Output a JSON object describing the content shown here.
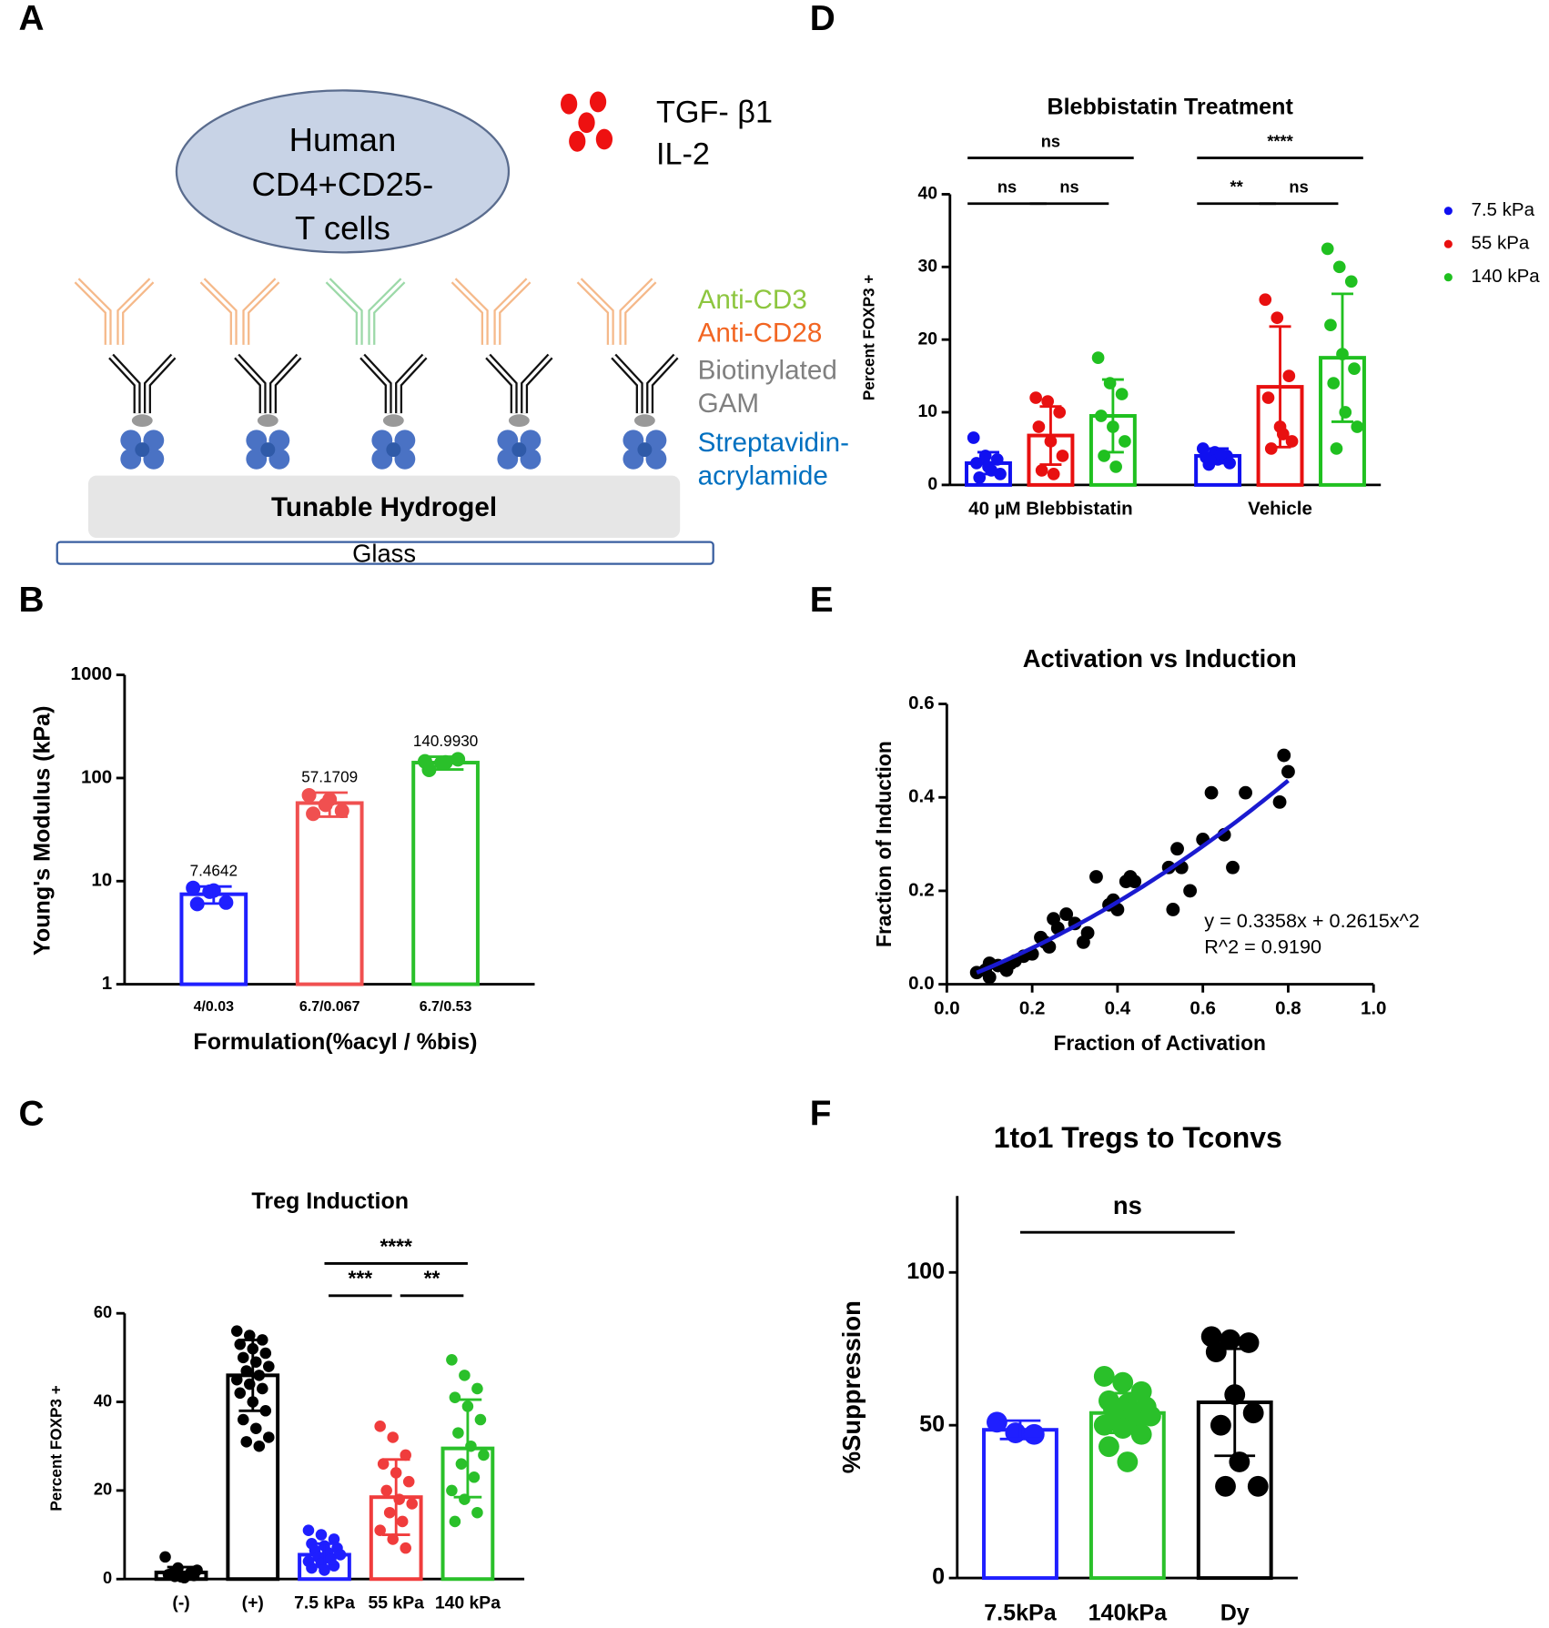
{
  "panels": [
    "A",
    "B",
    "C",
    "D",
    "E",
    "F"
  ],
  "diagram": {
    "cell_label": [
      "Human",
      "CD4+CD25-",
      "T cells"
    ],
    "cytokines": [
      "TGF- β1",
      "IL-2"
    ],
    "legend": [
      {
        "text": "Anti-CD3",
        "color": "#8dc63f"
      },
      {
        "text": "Anti-CD28",
        "color": "#f26522"
      },
      {
        "text": "Biotinylated",
        "color": "#808080"
      },
      {
        "text": "GAM",
        "color": "#808080"
      },
      {
        "text": "Streptavidin-",
        "color": "#0070c0"
      },
      {
        "text": "acrylamide",
        "color": "#0070c0"
      }
    ],
    "hydrogel": "Tunable Hydrogel",
    "glass": "Glass"
  },
  "chart_data": [
    {
      "type": "bar",
      "log": true,
      "ylabel": "Young's Modulus (kPa)",
      "xlabel": "Formulation(%acyl / %bis)",
      "categories": [
        "4/0.03",
        "6.7/0.067",
        "6.7/0.53"
      ],
      "values": [
        7.4642,
        57.1709,
        140.993
      ],
      "value_labels": [
        "7.4642",
        "57.1709",
        "140.9930"
      ],
      "errors": [
        1.4,
        15,
        20
      ],
      "colors": [
        "#1f1fff",
        "#f05050",
        "#2ac02a"
      ],
      "points": [
        [
          8.6,
          7.9,
          6.2,
          6.0,
          8.1
        ],
        [
          68,
          55,
          48,
          45,
          62
        ],
        [
          145,
          140,
          152,
          120,
          142
        ]
      ],
      "ylim": [
        1,
        1000
      ],
      "yticks": [
        1,
        10,
        100,
        1000
      ]
    },
    {
      "type": "bar",
      "title": "Treg Induction",
      "ylabel": "Percent FOXP3 +",
      "categories": [
        "(-)",
        "(+)",
        "7.5 kPa",
        "55 kPa",
        "140 kPa"
      ],
      "values": [
        1.5,
        46,
        5.5,
        18.5,
        29.5
      ],
      "errors": [
        1.2,
        8,
        2.5,
        8.5,
        11
      ],
      "colors": [
        "#000000",
        "#000000",
        "#1f1fff",
        "#f03c3c",
        "#2ac02a"
      ],
      "points": [
        [
          5,
          2.5,
          1.5,
          1,
          0.5,
          0.8,
          1.2,
          0.3,
          2,
          0.6
        ],
        [
          56,
          55,
          54,
          53,
          52,
          51,
          50,
          49,
          48,
          47,
          46,
          45,
          44,
          43,
          42,
          40,
          38,
          36,
          34,
          32,
          31,
          30
        ],
        [
          11,
          10,
          9,
          8,
          7.5,
          7,
          6.5,
          6,
          5.5,
          5,
          4.5,
          4,
          3.5,
          3,
          2.5,
          2
        ],
        [
          34.5,
          32,
          28,
          26,
          24,
          22,
          20,
          18,
          17,
          15,
          13,
          11,
          9,
          7
        ],
        [
          49.5,
          46,
          43,
          41,
          39,
          36,
          33,
          30,
          28,
          26,
          23,
          20,
          18,
          15,
          13
        ]
      ],
      "ylim": [
        0,
        60
      ],
      "yticks": [
        0,
        20,
        40,
        60
      ],
      "significance": [
        {
          "from": 2,
          "to": 3,
          "label": "***"
        },
        {
          "from": 3,
          "to": 4,
          "label": "**"
        },
        {
          "from": 2,
          "to": 4,
          "label": "****"
        }
      ]
    },
    {
      "type": "grouped_bar",
      "title": "Blebbistatin Treatment",
      "ylabel": "Percent FOXP3 +",
      "legend": "right",
      "categories": [
        "40 µM Blebbistatin",
        "Vehicle"
      ],
      "series": [
        {
          "name": "7.5 kPa",
          "color": "#1010f0",
          "values": [
            3,
            4
          ],
          "errors": [
            1.5,
            1
          ],
          "points": [
            [
              6.5,
              4,
              3.5,
              3,
              2.5,
              1.5,
              1,
              2
            ],
            [
              5,
              4.5,
              4,
              3.8,
              3.5,
              3,
              2.8,
              4.2
            ]
          ]
        },
        {
          "name": "55 kPa",
          "color": "#e81010",
          "values": [
            6.8,
            13.5
          ],
          "errors": [
            4,
            8.3
          ],
          "points": [
            [
              12,
              11.5,
              10,
              8,
              6,
              4,
              2,
              1.5
            ],
            [
              25.5,
              23,
              15,
              12,
              8,
              6,
              5,
              7
            ]
          ]
        },
        {
          "name": "140 kPa",
          "color": "#20c020",
          "values": [
            9.5,
            17.5
          ],
          "errors": [
            5,
            8.8
          ],
          "points": [
            [
              17.5,
              14,
              12.5,
              9.5,
              8,
              6,
              4,
              2.5
            ],
            [
              32.5,
              30,
              28,
              22,
              18,
              16,
              14,
              10,
              8,
              5
            ]
          ]
        }
      ],
      "ylim": [
        0,
        40
      ],
      "yticks": [
        0,
        10,
        20,
        30,
        40
      ],
      "significance": [
        {
          "group": 0,
          "from": 0,
          "to": 1,
          "label": "ns"
        },
        {
          "group": 0,
          "from": 1,
          "to": 2,
          "label": "ns"
        },
        {
          "group": 0,
          "from": 0,
          "to": 2,
          "label": "ns"
        },
        {
          "group": 1,
          "from": 0,
          "to": 1,
          "label": "**"
        },
        {
          "group": 1,
          "from": 1,
          "to": 2,
          "label": "ns"
        },
        {
          "group": 1,
          "from": 0,
          "to": 2,
          "label": "****"
        }
      ]
    },
    {
      "type": "scatter",
      "title": "Activation vs Induction",
      "xlabel": "Fraction of Activation",
      "ylabel": "Fraction of Induction",
      "color": "#000000",
      "fit_color": "#1a1ad0",
      "x": [
        0.07,
        0.09,
        0.1,
        0.1,
        0.12,
        0.14,
        0.15,
        0.16,
        0.18,
        0.2,
        0.22,
        0.23,
        0.24,
        0.25,
        0.26,
        0.28,
        0.3,
        0.32,
        0.33,
        0.35,
        0.38,
        0.39,
        0.4,
        0.42,
        0.43,
        0.44,
        0.52,
        0.53,
        0.54,
        0.55,
        0.57,
        0.6,
        0.62,
        0.65,
        0.67,
        0.7,
        0.78,
        0.79,
        0.8
      ],
      "y": [
        0.025,
        0.03,
        0.045,
        0.015,
        0.04,
        0.03,
        0.045,
        0.05,
        0.06,
        0.065,
        0.1,
        0.09,
        0.08,
        0.14,
        0.12,
        0.15,
        0.13,
        0.09,
        0.11,
        0.23,
        0.17,
        0.18,
        0.16,
        0.22,
        0.23,
        0.22,
        0.25,
        0.16,
        0.29,
        0.25,
        0.2,
        0.31,
        0.41,
        0.32,
        0.25,
        0.41,
        0.39,
        0.49,
        0.455
      ],
      "fit_coefficients": [
        0.3358,
        0.2615
      ],
      "annotations": [
        "y = 0.3358x + 0.2615x^2",
        "R^2 = 0.9190"
      ],
      "xlim": [
        0,
        1
      ],
      "xticks": [
        {
          "value": 0,
          "label": "0.0"
        },
        0.2,
        0.4,
        0.6,
        0.8,
        {
          "value": 1,
          "label": "1.0"
        }
      ],
      "ylim": [
        0,
        0.6
      ],
      "yticks": [
        {
          "value": 0,
          "label": "0.0"
        },
        0.2,
        0.4,
        0.6
      ]
    },
    {
      "type": "bar",
      "title": "1to1 Tregs to Tconvs",
      "ylabel": "%Suppression",
      "categories": [
        "7.5kPa",
        "140kPa",
        "Dy"
      ],
      "values": [
        48.5,
        54,
        57.5
      ],
      "errors": [
        3,
        6.5,
        17.5
      ],
      "colors": [
        "#1f1fff",
        "#2ac02a",
        "#000000"
      ],
      "points": [
        [
          51,
          47.5,
          47
        ],
        [
          66,
          64,
          61,
          58,
          57,
          56,
          55,
          54,
          53,
          52,
          51,
          50,
          49,
          47,
          43,
          38
        ],
        [
          79,
          78,
          77,
          74,
          60,
          54,
          50,
          38,
          30,
          30
        ]
      ],
      "ylim": [
        0,
        125
      ],
      "yticks": [
        0,
        50,
        100
      ],
      "significance": [
        {
          "from": 0,
          "to": 2,
          "label": "ns"
        }
      ]
    }
  ]
}
